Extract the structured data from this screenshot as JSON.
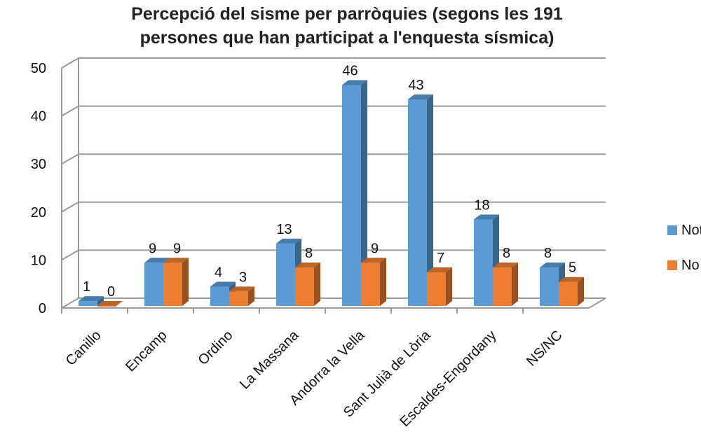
{
  "chart_data": {
    "type": "bar",
    "title": [
      "Percepció del sisme per parròquies (segons les 191",
      "persones que han participat a l'enquesta sísmica)"
    ],
    "categories": [
      "Canillo",
      "Encamp",
      "Ordino",
      "La Massana",
      "Andorra la Vella",
      "Sant Julià de Lòria",
      "Escaldes-Engordany",
      "NS/NC"
    ],
    "series": [
      {
        "name": "Nota",
        "color": "#5b9bd5",
        "values": [
          1,
          9,
          4,
          13,
          46,
          43,
          18,
          8
        ]
      },
      {
        "name": "No n",
        "color": "#ed7d31",
        "values": [
          0,
          9,
          3,
          8,
          9,
          7,
          8,
          5
        ]
      }
    ],
    "yticks": [
      0,
      10,
      20,
      30,
      40,
      50
    ],
    "ylim": [
      0,
      50
    ],
    "grid": true,
    "legend": "right"
  }
}
